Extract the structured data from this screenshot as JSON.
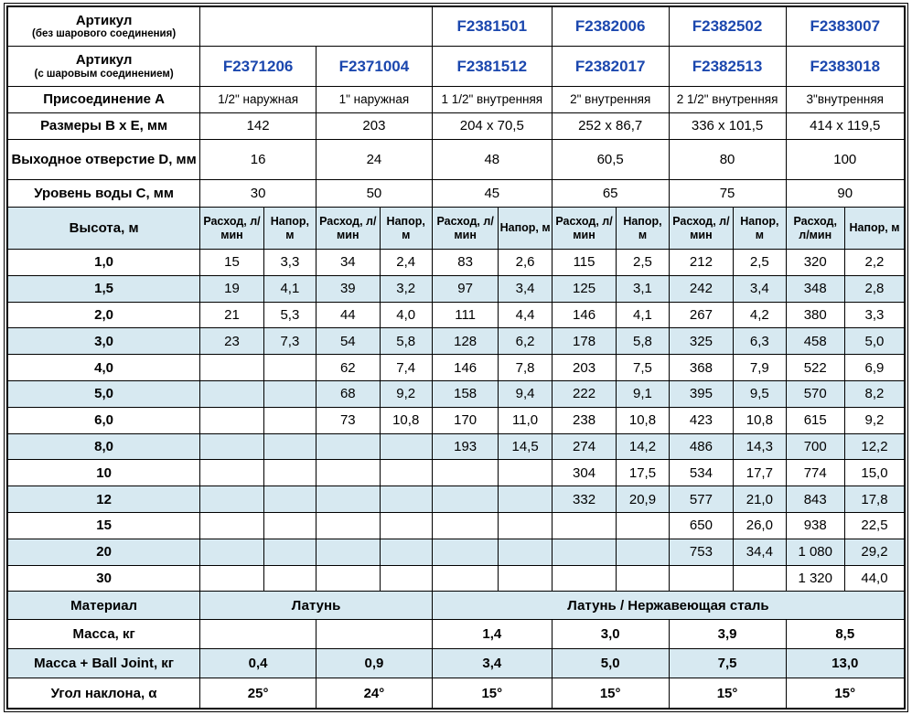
{
  "colors": {
    "article_blue": "#1b47ae",
    "stripe_blue": "#d7e9f1",
    "border": "#000000",
    "background": "#ffffff"
  },
  "header_rows": {
    "article_no_ball_label": "Артикул",
    "article_no_ball_sub": "(без шарового соединения)",
    "article_ball_label": "Артикул",
    "article_ball_sub": "(с шаровым соединением)",
    "connection_label": "Присоединение А",
    "dimensions_label": "Размеры B x E, мм",
    "outlet_label": "Выходное отверстие D, мм",
    "water_level_label": "Уровень воды C, мм",
    "height_label": "Высота, м",
    "flow_label": "Расход, л/мин",
    "head_label": "Напор, м"
  },
  "models": [
    {
      "article_no_ball": "",
      "article_ball": "F2371206",
      "connection": "1/2\" наружная",
      "dimensions_bxe": "142",
      "outlet_d": "16",
      "water_level_c": "30",
      "mass_kg": "",
      "mass_ball_joint_kg": "0,4",
      "angle": "25°"
    },
    {
      "article_no_ball": "",
      "article_ball": "F2371004",
      "connection": "1\" наружная",
      "dimensions_bxe": "203",
      "outlet_d": "24",
      "water_level_c": "50",
      "mass_kg": "",
      "mass_ball_joint_kg": "0,9",
      "angle": "24°"
    },
    {
      "article_no_ball": "F2381501",
      "article_ball": "F2381512",
      "connection": "1 1/2\" внутренняя",
      "dimensions_bxe": "204 x 70,5",
      "outlet_d": "48",
      "water_level_c": "45",
      "mass_kg": "1,4",
      "mass_ball_joint_kg": "3,4",
      "angle": "15°"
    },
    {
      "article_no_ball": "F2382006",
      "article_ball": "F2382017",
      "connection": "2\" внутренняя",
      "dimensions_bxe": "252 x 86,7",
      "outlet_d": "60,5",
      "water_level_c": "65",
      "mass_kg": "3,0",
      "mass_ball_joint_kg": "5,0",
      "angle": "15°"
    },
    {
      "article_no_ball": "F2382502",
      "article_ball": "F2382513",
      "connection": "2 1/2\" внутренняя",
      "dimensions_bxe": "336 x 101,5",
      "outlet_d": "80",
      "water_level_c": "75",
      "mass_kg": "3,9",
      "mass_ball_joint_kg": "7,5",
      "angle": "15°"
    },
    {
      "article_no_ball": "F2383007",
      "article_ball": "F2383018",
      "connection": "3\"внутренняя",
      "dimensions_bxe": "414 x 119,5",
      "outlet_d": "100",
      "water_level_c": "90",
      "mass_kg": "8,5",
      "mass_ball_joint_kg": "13,0",
      "angle": "15°"
    }
  ],
  "flow_table": {
    "heights": [
      "1,0",
      "1,5",
      "2,0",
      "3,0",
      "4,0",
      "5,0",
      "6,0",
      "8,0",
      "10",
      "12",
      "15",
      "20",
      "30"
    ],
    "rows": [
      [
        "15",
        "3,3",
        "34",
        "2,4",
        "83",
        "2,6",
        "115",
        "2,5",
        "212",
        "2,5",
        "320",
        "2,2"
      ],
      [
        "19",
        "4,1",
        "39",
        "3,2",
        "97",
        "3,4",
        "125",
        "3,1",
        "242",
        "3,4",
        "348",
        "2,8"
      ],
      [
        "21",
        "5,3",
        "44",
        "4,0",
        "111",
        "4,4",
        "146",
        "4,1",
        "267",
        "4,2",
        "380",
        "3,3"
      ],
      [
        "23",
        "7,3",
        "54",
        "5,8",
        "128",
        "6,2",
        "178",
        "5,8",
        "325",
        "6,3",
        "458",
        "5,0"
      ],
      [
        "",
        "",
        "62",
        "7,4",
        "146",
        "7,8",
        "203",
        "7,5",
        "368",
        "7,9",
        "522",
        "6,9"
      ],
      [
        "",
        "",
        "68",
        "9,2",
        "158",
        "9,4",
        "222",
        "9,1",
        "395",
        "9,5",
        "570",
        "8,2"
      ],
      [
        "",
        "",
        "73",
        "10,8",
        "170",
        "11,0",
        "238",
        "10,8",
        "423",
        "10,8",
        "615",
        "9,2"
      ],
      [
        "",
        "",
        "",
        "",
        "193",
        "14,5",
        "274",
        "14,2",
        "486",
        "14,3",
        "700",
        "12,2"
      ],
      [
        "",
        "",
        "",
        "",
        "",
        "",
        "304",
        "17,5",
        "534",
        "17,7",
        "774",
        "15,0"
      ],
      [
        "",
        "",
        "",
        "",
        "",
        "",
        "332",
        "20,9",
        "577",
        "21,0",
        "843",
        "17,8"
      ],
      [
        "",
        "",
        "",
        "",
        "",
        "",
        "",
        "",
        "650",
        "26,0",
        "938",
        "22,5"
      ],
      [
        "",
        "",
        "",
        "",
        "",
        "",
        "",
        "",
        "753",
        "34,4",
        "1 080",
        "29,2"
      ],
      [
        "",
        "",
        "",
        "",
        "",
        "",
        "",
        "",
        "",
        "",
        "1 320",
        "44,0"
      ]
    ]
  },
  "material_row": {
    "label": "Материал",
    "brass": "Латунь",
    "brass_steel": "Латунь / Нержавеющая сталь"
  },
  "bottom_labels": {
    "mass": "Масса, кг",
    "mass_ball_joint": "Масса + Ball Joint, кг",
    "angle": "Угол наклона, α"
  }
}
